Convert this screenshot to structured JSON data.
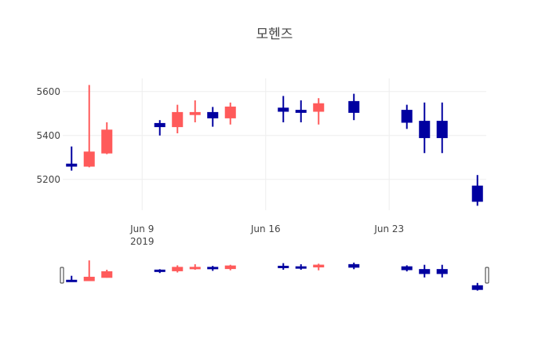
{
  "chart_data": {
    "type": "candlestick",
    "title": "모헨즈",
    "x_ticks": [
      {
        "date": "2019-06-09",
        "label": "Jun 9",
        "sublabel": "2019"
      },
      {
        "date": "2019-06-16",
        "label": "Jun 16",
        "sublabel": ""
      },
      {
        "date": "2019-06-23",
        "label": "Jun 23",
        "sublabel": ""
      }
    ],
    "y_ticks": [
      5200,
      5400,
      5600
    ],
    "ylim": [
      5060,
      5660
    ],
    "xlim": [
      "2019-06-04T12:00",
      "2019-06-28T12:00"
    ],
    "grid": true,
    "range_slider": true,
    "colors": {
      "increasing": "#FF5A5A",
      "decreasing": "#0000A0",
      "grid": "#EEEEEE"
    },
    "candles": [
      {
        "date": "2019-06-05",
        "open": 5270,
        "high": 5350,
        "low": 5240,
        "close": 5260
      },
      {
        "date": "2019-06-06",
        "open": 5260,
        "high": 5630,
        "low": 5255,
        "close": 5325
      },
      {
        "date": "2019-06-07",
        "open": 5320,
        "high": 5460,
        "low": 5315,
        "close": 5425
      },
      {
        "date": "2019-06-10",
        "open": 5455,
        "high": 5470,
        "low": 5400,
        "close": 5440
      },
      {
        "date": "2019-06-11",
        "open": 5440,
        "high": 5540,
        "low": 5410,
        "close": 5505
      },
      {
        "date": "2019-06-12",
        "open": 5495,
        "high": 5560,
        "low": 5460,
        "close": 5505
      },
      {
        "date": "2019-06-13",
        "open": 5505,
        "high": 5530,
        "low": 5440,
        "close": 5480
      },
      {
        "date": "2019-06-14",
        "open": 5480,
        "high": 5550,
        "low": 5450,
        "close": 5530
      },
      {
        "date": "2019-06-17",
        "open": 5525,
        "high": 5580,
        "low": 5460,
        "close": 5510
      },
      {
        "date": "2019-06-18",
        "open": 5515,
        "high": 5560,
        "low": 5460,
        "close": 5505
      },
      {
        "date": "2019-06-19",
        "open": 5510,
        "high": 5570,
        "low": 5450,
        "close": 5545
      },
      {
        "date": "2019-06-21",
        "open": 5555,
        "high": 5590,
        "low": 5470,
        "close": 5505
      },
      {
        "date": "2019-06-24",
        "open": 5515,
        "high": 5540,
        "low": 5430,
        "close": 5460
      },
      {
        "date": "2019-06-25",
        "open": 5465,
        "high": 5550,
        "low": 5320,
        "close": 5390
      },
      {
        "date": "2019-06-26",
        "open": 5465,
        "high": 5550,
        "low": 5320,
        "close": 5390
      },
      {
        "date": "2019-06-28",
        "open": 5170,
        "high": 5220,
        "low": 5080,
        "close": 5100
      }
    ]
  }
}
